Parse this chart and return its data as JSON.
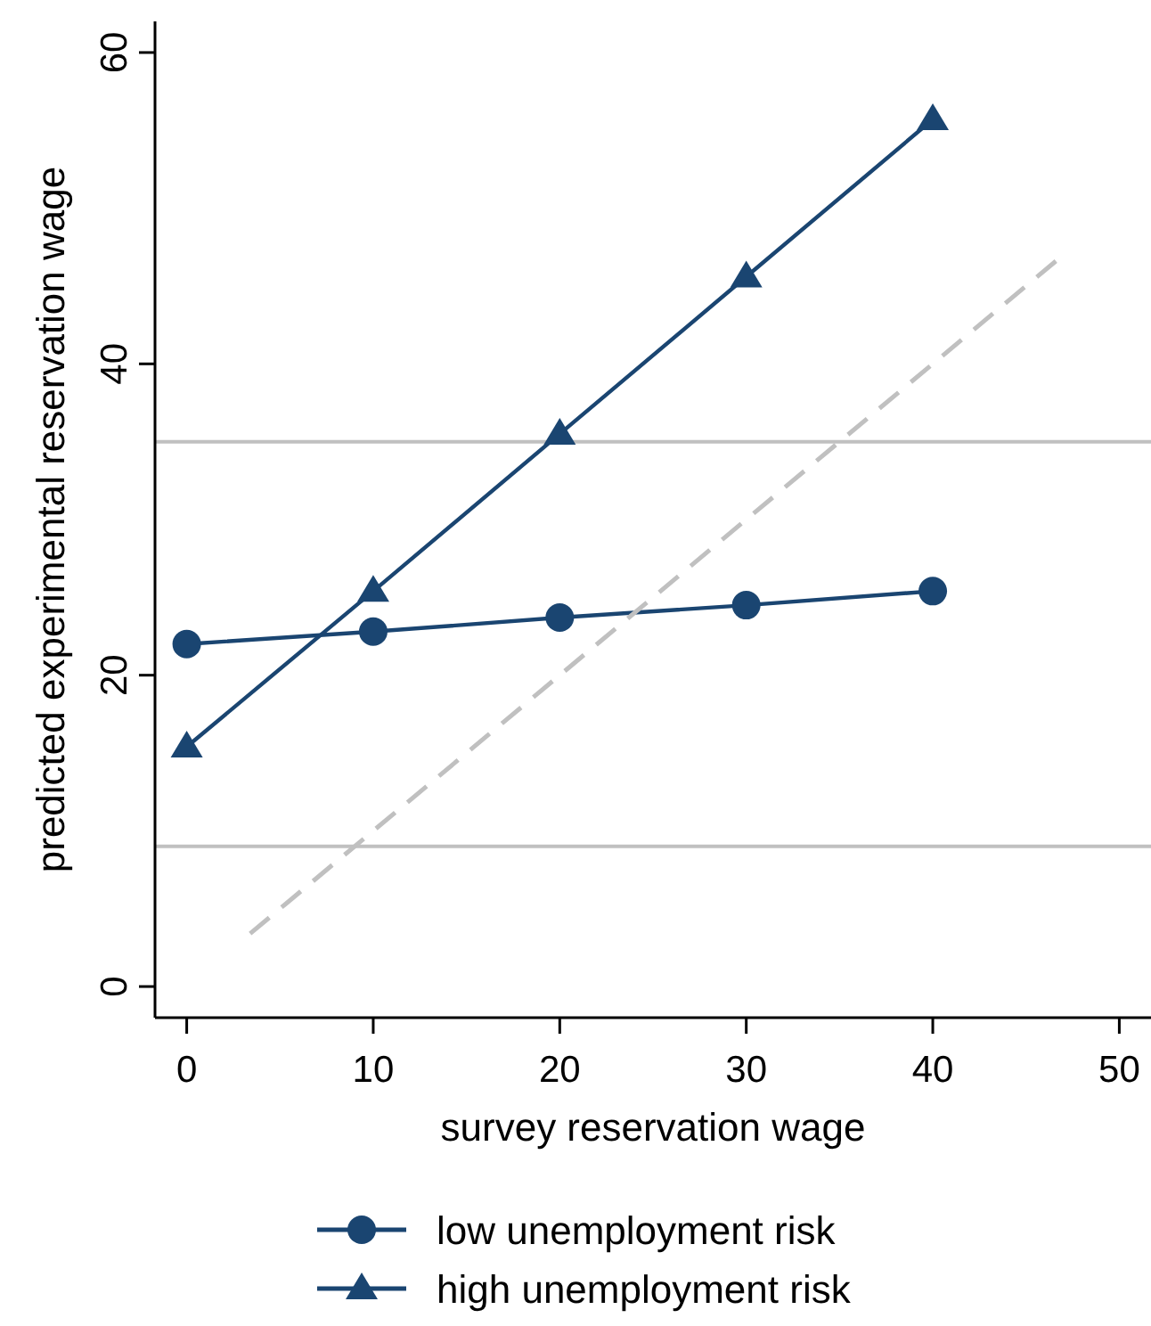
{
  "chart_data": {
    "type": "line",
    "xlabel": "survey reservation  wage",
    "ylabel": "predicted experimental reservation wage",
    "xlim": [
      -1.7,
      51.7
    ],
    "ylim": [
      -2,
      62
    ],
    "xticks": [
      0,
      10,
      20,
      30,
      40,
      50
    ],
    "yticks": [
      0,
      20,
      40,
      60
    ],
    "grid": false,
    "legend": "bottom",
    "ref_lines": [
      {
        "axis": "y",
        "value": 35,
        "color": "#c0c0c0"
      },
      {
        "axis": "y",
        "value": 9,
        "color": "#c0c0c0"
      }
    ],
    "series": [
      {
        "name": "low unemployment risk",
        "color": "#1a4571",
        "marker": "circle",
        "line_style": "solid",
        "x": [
          0,
          10,
          20,
          30,
          40
        ],
        "values": [
          22.0,
          22.8,
          23.7,
          24.5,
          25.4
        ]
      },
      {
        "name": "high unemployment risk",
        "color": "#1a4571",
        "marker": "triangle",
        "line_style": "solid",
        "x": [
          0,
          10,
          20,
          30,
          40
        ],
        "values": [
          15.4,
          25.4,
          35.5,
          45.6,
          55.7
        ]
      },
      {
        "color": "#c0c0c0",
        "marker": "none",
        "line_style": "dashed",
        "x": [
          3.4,
          46.6
        ],
        "values": [
          3.4,
          46.6
        ]
      }
    ]
  }
}
